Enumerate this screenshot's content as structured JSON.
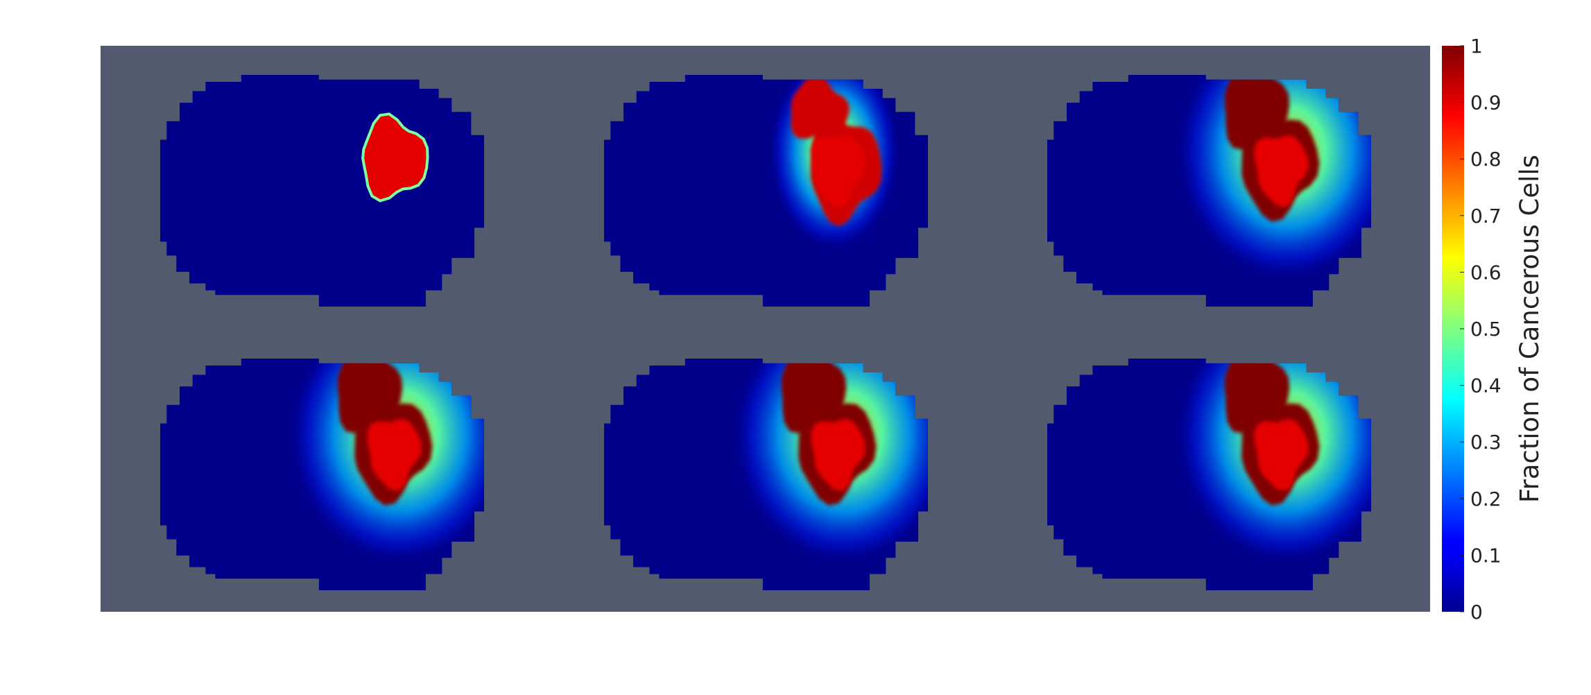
{
  "figure": {
    "background_color": "#525a6e",
    "domain_color": "#00008a"
  },
  "chart_data": {
    "type": "heatmap",
    "title": "",
    "grid": false,
    "panel_layout": "2 rows x 3 columns",
    "colormap": "jet",
    "colorbar": {
      "label": "Fraction of Cancerous Cells",
      "range": [
        0,
        1
      ],
      "ticks": [
        "0",
        "0.1",
        "0.2",
        "0.3",
        "0.4",
        "0.5",
        "0.6",
        "0.7",
        "0.8",
        "0.9",
        "1"
      ],
      "placement": "right"
    },
    "panels": [
      {
        "index": 1,
        "tumor_peak_fraction": 0.9,
        "halo": false
      },
      {
        "index": 2,
        "tumor_peak_fraction": 1.0,
        "halo": true
      },
      {
        "index": 3,
        "tumor_peak_fraction": 1.0,
        "halo": true
      },
      {
        "index": 4,
        "tumor_peak_fraction": 1.0,
        "halo": true
      },
      {
        "index": 5,
        "tumor_peak_fraction": 1.0,
        "halo": true
      },
      {
        "index": 6,
        "tumor_peak_fraction": 1.0,
        "halo": true
      }
    ]
  }
}
